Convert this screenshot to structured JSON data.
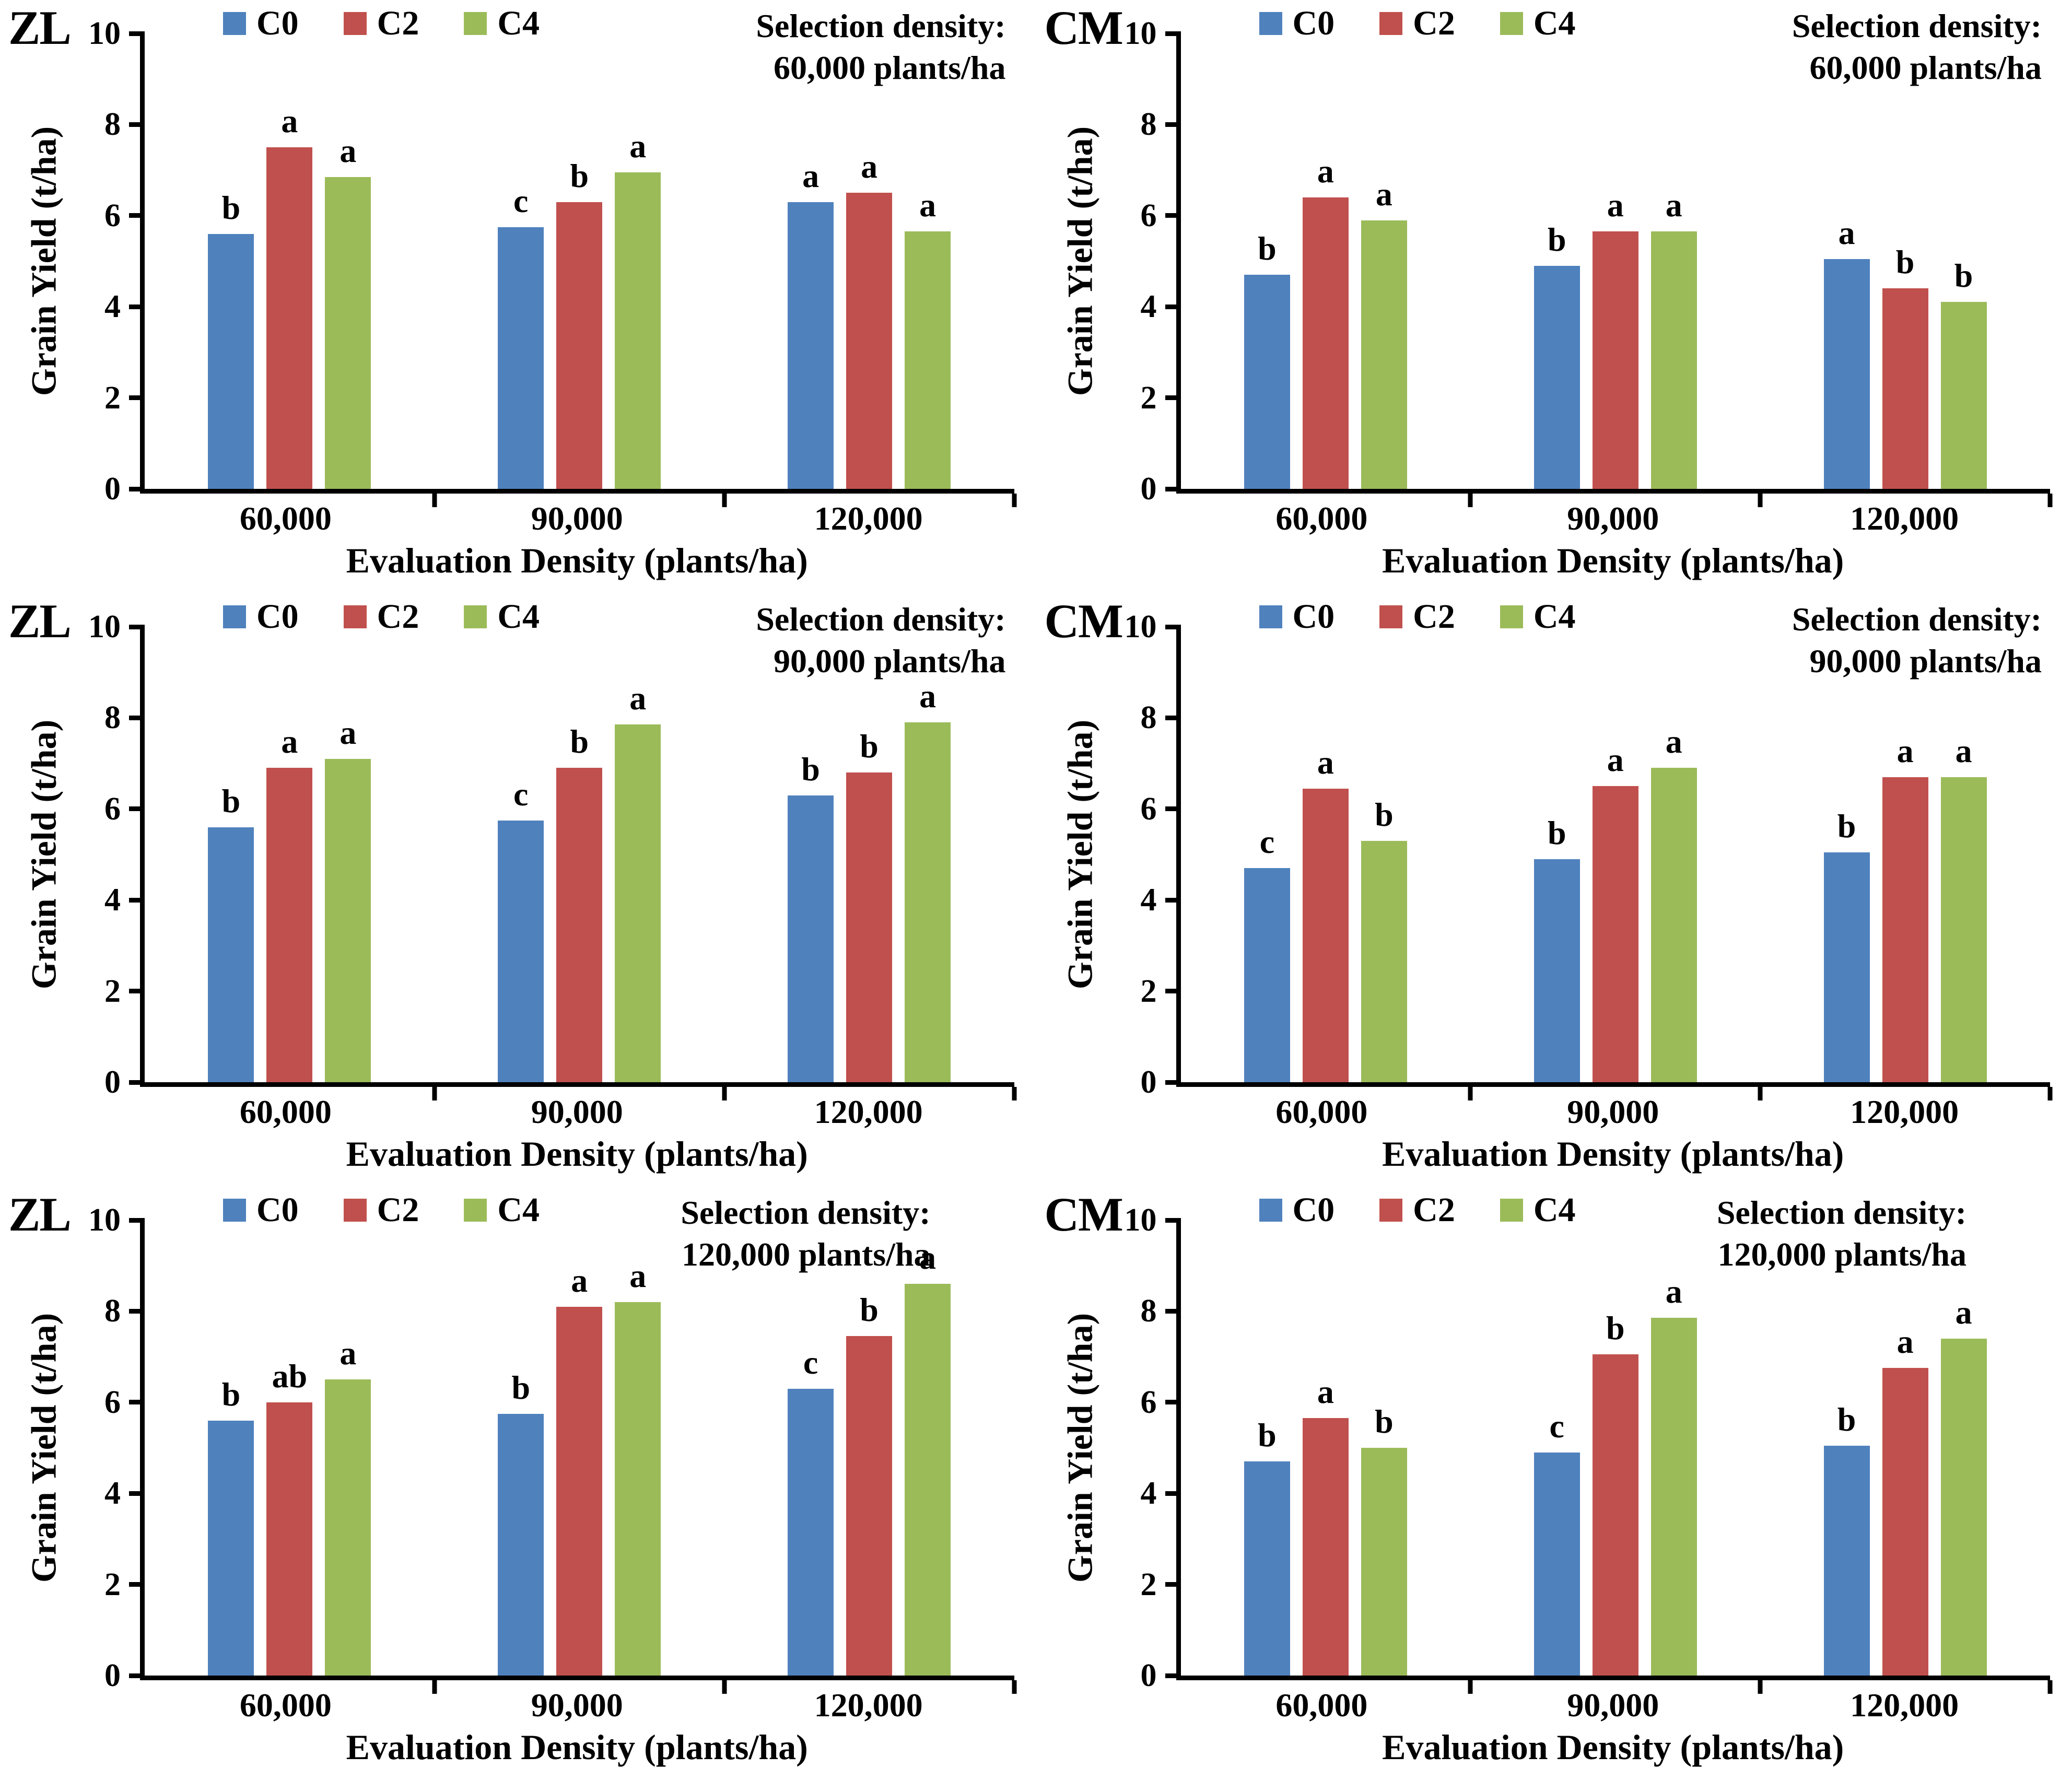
{
  "figure": {
    "rows": 3,
    "cols": 2,
    "row_labels": [
      "ZL",
      "CM"
    ],
    "accent_colors": {
      "C0": "#4F81BD",
      "C2": "#C0504D",
      "C4": "#9BBB59"
    }
  },
  "chart_data": [
    {
      "type": "bar",
      "panel": "ZL",
      "annotation": [
        "Selection density:",
        "60,000 plants/ha"
      ],
      "xlabel": "Evaluation Density (plants/ha)",
      "ylabel": "Grain Yield (t/ha)",
      "ylim": [
        0,
        10
      ],
      "y_ticks": [
        0,
        2,
        4,
        6,
        8,
        10
      ],
      "grid": "off",
      "legend_position": "top",
      "categories": [
        "60,000",
        "90,000",
        "120,000"
      ],
      "series": [
        {
          "name": "C0",
          "color": "#4F81BD",
          "values": [
            5.6,
            5.75,
            6.3
          ],
          "sig_letters": [
            "b",
            "c",
            "a"
          ]
        },
        {
          "name": "C2",
          "color": "#C0504D",
          "values": [
            7.5,
            6.3,
            6.5
          ],
          "sig_letters": [
            "a",
            "b",
            "a"
          ]
        },
        {
          "name": "C4",
          "color": "#9BBB59",
          "values": [
            6.85,
            6.95,
            5.65
          ],
          "sig_letters": [
            "a",
            "a",
            "a"
          ]
        }
      ]
    },
    {
      "type": "bar",
      "panel": "CM",
      "annotation": [
        "Selection density:",
        "60,000 plants/ha"
      ],
      "xlabel": "Evaluation Density (plants/ha)",
      "ylabel": "Grain Yield (t/ha)",
      "ylim": [
        0,
        10
      ],
      "y_ticks": [
        0,
        2,
        4,
        6,
        8,
        10
      ],
      "grid": "off",
      "legend_position": "top",
      "categories": [
        "60,000",
        "90,000",
        "120,000"
      ],
      "series": [
        {
          "name": "C0",
          "color": "#4F81BD",
          "values": [
            4.7,
            4.9,
            5.05
          ],
          "sig_letters": [
            "b",
            "b",
            "a"
          ]
        },
        {
          "name": "C2",
          "color": "#C0504D",
          "values": [
            6.4,
            5.65,
            4.4
          ],
          "sig_letters": [
            "a",
            "a",
            "b"
          ]
        },
        {
          "name": "C4",
          "color": "#9BBB59",
          "values": [
            5.9,
            5.65,
            4.1
          ],
          "sig_letters": [
            "a",
            "a",
            "b"
          ]
        }
      ]
    },
    {
      "type": "bar",
      "panel": "ZL",
      "annotation": [
        "Selection density:",
        "90,000 plants/ha"
      ],
      "xlabel": "Evaluation Density (plants/ha)",
      "ylabel": "Grain Yield (t/ha)",
      "ylim": [
        0,
        10
      ],
      "y_ticks": [
        0,
        2,
        4,
        6,
        8,
        10
      ],
      "grid": "off",
      "legend_position": "top",
      "categories": [
        "60,000",
        "90,000",
        "120,000"
      ],
      "series": [
        {
          "name": "C0",
          "color": "#4F81BD",
          "values": [
            5.6,
            5.75,
            6.3
          ],
          "sig_letters": [
            "b",
            "c",
            "b"
          ]
        },
        {
          "name": "C2",
          "color": "#C0504D",
          "values": [
            6.9,
            6.9,
            6.8
          ],
          "sig_letters": [
            "a",
            "b",
            "b"
          ]
        },
        {
          "name": "C4",
          "color": "#9BBB59",
          "values": [
            7.1,
            7.85,
            7.9
          ],
          "sig_letters": [
            "a",
            "a",
            "a"
          ]
        }
      ]
    },
    {
      "type": "bar",
      "panel": "CM",
      "annotation": [
        "Selection density:",
        "90,000 plants/ha"
      ],
      "xlabel": "Evaluation Density (plants/ha)",
      "ylabel": "Grain Yield (t/ha)",
      "ylim": [
        0,
        10
      ],
      "y_ticks": [
        0,
        2,
        4,
        6,
        8,
        10
      ],
      "grid": "off",
      "legend_position": "top",
      "categories": [
        "60,000",
        "90,000",
        "120,000"
      ],
      "series": [
        {
          "name": "C0",
          "color": "#4F81BD",
          "values": [
            4.7,
            4.9,
            5.05
          ],
          "sig_letters": [
            "c",
            "b",
            "b"
          ]
        },
        {
          "name": "C2",
          "color": "#C0504D",
          "values": [
            6.45,
            6.5,
            6.7
          ],
          "sig_letters": [
            "a",
            "a",
            "a"
          ]
        },
        {
          "name": "C4",
          "color": "#9BBB59",
          "values": [
            5.3,
            6.9,
            6.7
          ],
          "sig_letters": [
            "b",
            "a",
            "a"
          ]
        }
      ]
    },
    {
      "type": "bar",
      "panel": "ZL",
      "annotation": [
        "Selection density:",
        "120,000 plants/ha"
      ],
      "xlabel": "Evaluation Density (plants/ha)",
      "ylabel": "Grain Yield (t/ha)",
      "ylim": [
        0,
        10
      ],
      "y_ticks": [
        0,
        2,
        4,
        6,
        8,
        10
      ],
      "grid": "off",
      "legend_position": "top",
      "categories": [
        "60,000",
        "90,000",
        "120,000"
      ],
      "series": [
        {
          "name": "C0",
          "color": "#4F81BD",
          "values": [
            5.6,
            5.75,
            6.3
          ],
          "sig_letters": [
            "b",
            "b",
            "c"
          ]
        },
        {
          "name": "C2",
          "color": "#C0504D",
          "values": [
            6.0,
            8.1,
            7.45
          ],
          "sig_letters": [
            "ab",
            "a",
            "b"
          ]
        },
        {
          "name": "C4",
          "color": "#9BBB59",
          "values": [
            6.5,
            8.2,
            8.6
          ],
          "sig_letters": [
            "a",
            "a",
            "a"
          ]
        }
      ]
    },
    {
      "type": "bar",
      "panel": "CM",
      "annotation": [
        "Selection density:",
        "120,000 plants/ha"
      ],
      "xlabel": "Evaluation Density (plants/ha)",
      "ylabel": "Grain Yield (t/ha)",
      "ylim": [
        0,
        10
      ],
      "y_ticks": [
        0,
        2,
        4,
        6,
        8,
        10
      ],
      "grid": "off",
      "legend_position": "top",
      "categories": [
        "60,000",
        "90,000",
        "120,000"
      ],
      "series": [
        {
          "name": "C0",
          "color": "#4F81BD",
          "values": [
            4.7,
            4.9,
            5.05
          ],
          "sig_letters": [
            "b",
            "c",
            "b"
          ]
        },
        {
          "name": "C2",
          "color": "#C0504D",
          "values": [
            5.65,
            7.05,
            6.75
          ],
          "sig_letters": [
            "a",
            "b",
            "a"
          ]
        },
        {
          "name": "C4",
          "color": "#9BBB59",
          "values": [
            5.0,
            7.85,
            7.4
          ],
          "sig_letters": [
            "b",
            "a",
            "a"
          ]
        }
      ]
    }
  ]
}
